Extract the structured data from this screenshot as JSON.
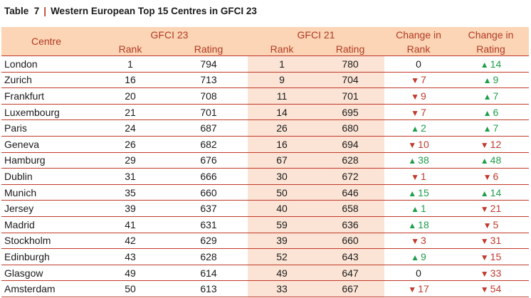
{
  "title": {
    "table_label": "Table  7",
    "separator": "|",
    "text": "Western European Top 15 Centres in GFCI 23"
  },
  "headers": {
    "centre": "Centre",
    "gfci23": "GFCI 23",
    "gfci21": "GFCI 21",
    "change_rank_line1": "Change in",
    "change_rank_line2": "Rank",
    "change_rating_line1": "Change in",
    "change_rating_line2": "Rating",
    "rank": "Rank",
    "rating": "Rating"
  },
  "colors": {
    "up": "#1e9e4a",
    "down": "#c0392b",
    "header_bg": "#fbd5b5",
    "shade": "#fbe4d5"
  },
  "rows": [
    {
      "centre": "London",
      "r23": "1",
      "g23": "794",
      "r21": "1",
      "g21": "780",
      "cr": "0",
      "cg": "14"
    },
    {
      "centre": "Zurich",
      "r23": "16",
      "g23": "713",
      "r21": "9",
      "g21": "704",
      "cr": "-7",
      "cg": "9"
    },
    {
      "centre": "Frankfurt",
      "r23": "20",
      "g23": "708",
      "r21": "11",
      "g21": "701",
      "cr": "-9",
      "cg": "7"
    },
    {
      "centre": "Luxembourg",
      "r23": "21",
      "g23": "701",
      "r21": "14",
      "g21": "695",
      "cr": "-7",
      "cg": "6"
    },
    {
      "centre": "Paris",
      "r23": "24",
      "g23": "687",
      "r21": "26",
      "g21": "680",
      "cr": "2",
      "cg": "7"
    },
    {
      "centre": "Geneva",
      "r23": "26",
      "g23": "682",
      "r21": "16",
      "g21": "694",
      "cr": "-10",
      "cg": "-12"
    },
    {
      "centre": "Hamburg",
      "r23": "29",
      "g23": "676",
      "r21": "67",
      "g21": "628",
      "cr": "38",
      "cg": "48"
    },
    {
      "centre": "Dublin",
      "r23": "31",
      "g23": "666",
      "r21": "30",
      "g21": "672",
      "cr": "-1",
      "cg": "-6"
    },
    {
      "centre": "Munich",
      "r23": "35",
      "g23": "660",
      "r21": "50",
      "g21": "646",
      "cr": "15",
      "cg": "14"
    },
    {
      "centre": "Jersey",
      "r23": "39",
      "g23": "637",
      "r21": "40",
      "g21": "658",
      "cr": "1",
      "cg": "-21"
    },
    {
      "centre": "Madrid",
      "r23": "41",
      "g23": "631",
      "r21": "59",
      "g21": "636",
      "cr": "18",
      "cg": "-5"
    },
    {
      "centre": "Stockholm",
      "r23": "42",
      "g23": "629",
      "r21": "39",
      "g21": "660",
      "cr": "-3",
      "cg": "-31"
    },
    {
      "centre": "Edinburgh",
      "r23": "43",
      "g23": "628",
      "r21": "52",
      "g21": "643",
      "cr": "9",
      "cg": "-15"
    },
    {
      "centre": "Glasgow",
      "r23": "49",
      "g23": "614",
      "r21": "49",
      "g21": "647",
      "cr": "0",
      "cg": "-33"
    },
    {
      "centre": "Amsterdam",
      "r23": "50",
      "g23": "613",
      "r21": "33",
      "g21": "667",
      "cr": "-17",
      "cg": "-54"
    }
  ]
}
